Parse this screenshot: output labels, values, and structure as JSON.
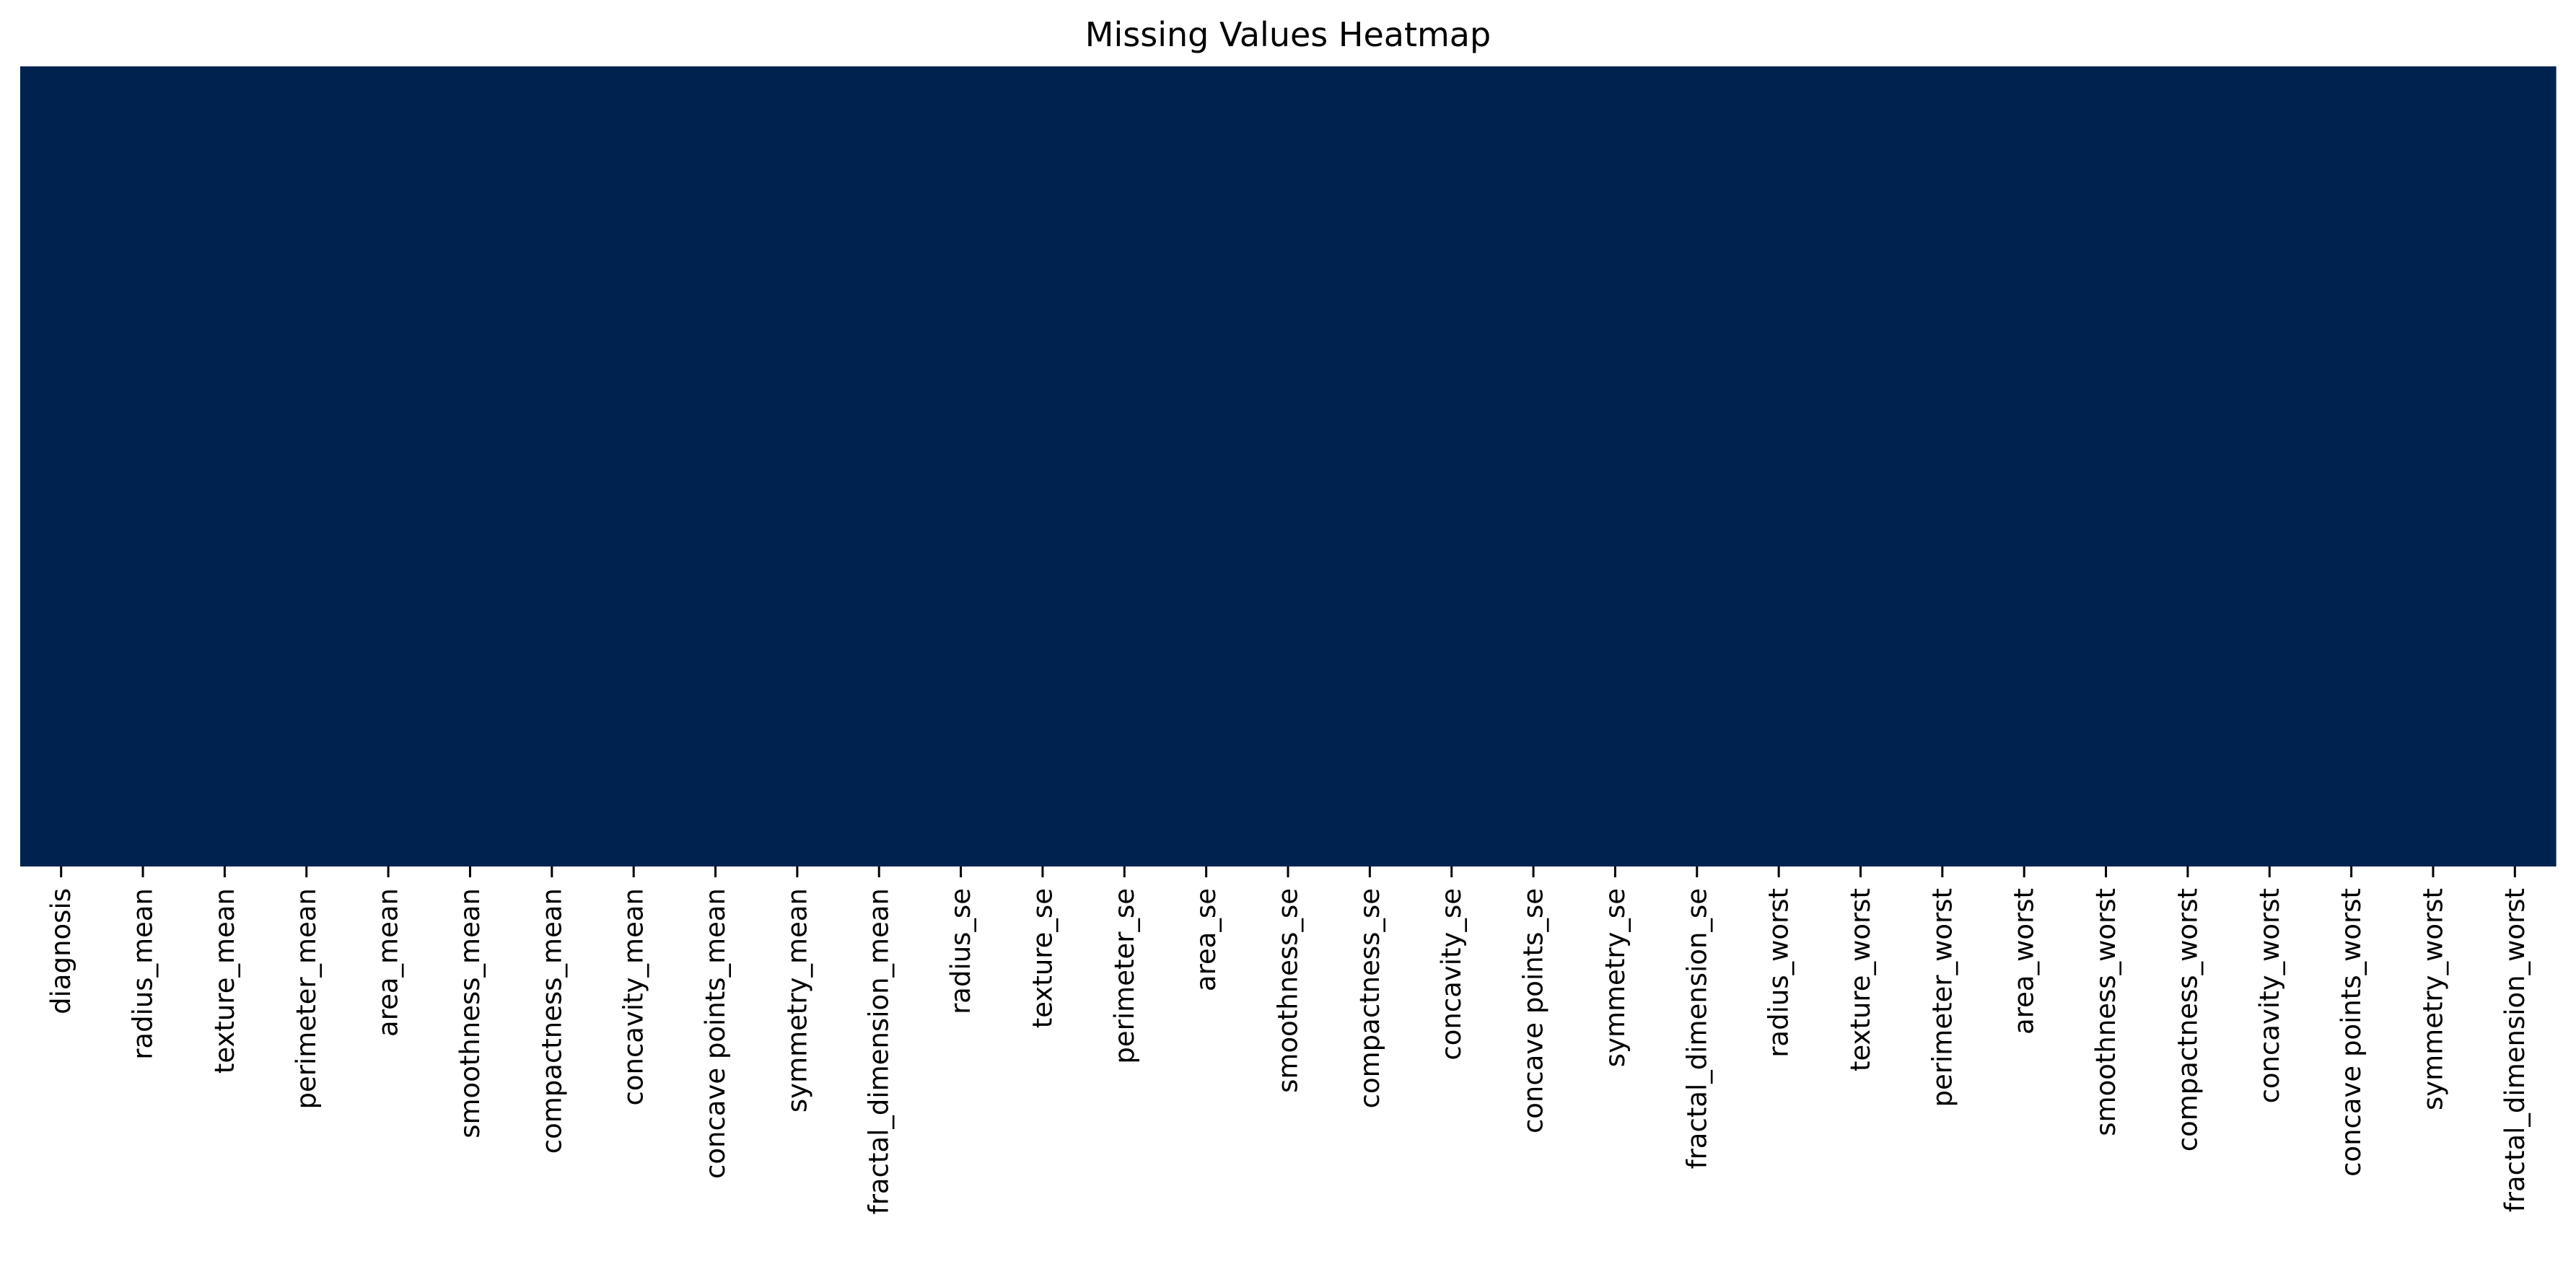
{
  "chart_data": {
    "type": "heatmap",
    "title": "Missing Values Heatmap",
    "xlabel": "",
    "ylabel": "",
    "colormap": "cividis",
    "colorbar": false,
    "y_ticks_shown": false,
    "categories": [
      "diagnosis",
      "radius_mean",
      "texture_mean",
      "perimeter_mean",
      "area_mean",
      "smoothness_mean",
      "compactness_mean",
      "concavity_mean",
      "concave points_mean",
      "symmetry_mean",
      "fractal_dimension_mean",
      "radius_se",
      "texture_se",
      "perimeter_se",
      "area_se",
      "smoothness_se",
      "compactness_se",
      "concavity_se",
      "concave points_se",
      "symmetry_se",
      "fractal_dimension_se",
      "radius_worst",
      "texture_worst",
      "perimeter_worst",
      "area_worst",
      "smoothness_worst",
      "compactness_worst",
      "concavity_worst",
      "concave points_worst",
      "symmetry_worst",
      "fractal_dimension_worst"
    ],
    "missing_counts": [
      0,
      0,
      0,
      0,
      0,
      0,
      0,
      0,
      0,
      0,
      0,
      0,
      0,
      0,
      0,
      0,
      0,
      0,
      0,
      0,
      0,
      0,
      0,
      0,
      0,
      0,
      0,
      0,
      0,
      0,
      0
    ],
    "cell_value": false,
    "fill_color": "#00224e"
  }
}
